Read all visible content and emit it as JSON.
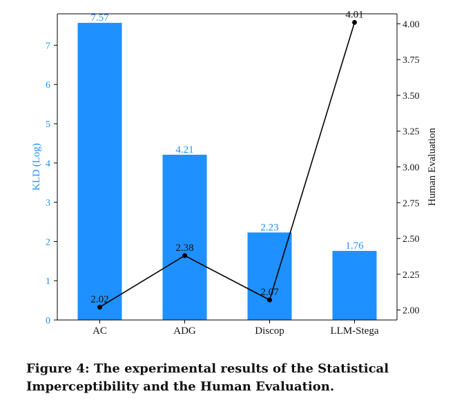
{
  "chart_data": {
    "type": "bar+line",
    "categories": [
      "AC",
      "ADG",
      "Discop",
      "LLM-Stega"
    ],
    "series": [
      {
        "name": "KLD (Log)",
        "type": "bar",
        "axis": "left",
        "values": [
          7.57,
          4.21,
          2.23,
          1.76
        ],
        "labels": [
          "7.57",
          "4.21",
          "2.23",
          "1.76"
        ],
        "color": "#1e90ff"
      },
      {
        "name": "Human Evaluation",
        "type": "line",
        "axis": "right",
        "values": [
          2.02,
          2.38,
          2.07,
          4.01
        ],
        "labels": [
          "2.02",
          "2.38",
          "2.07",
          "4.01"
        ],
        "color": "#000000"
      }
    ],
    "ylabel_left": "KLD (Log)",
    "ylabel_right": "Human Evaluation",
    "ylim_left": [
      0,
      7.8
    ],
    "ylim_right": [
      1.93,
      4.07
    ],
    "yticks_left": [
      0,
      1,
      2,
      3,
      4,
      5,
      6,
      7
    ],
    "yticks_right": [
      "2.00",
      "2.25",
      "2.50",
      "2.75",
      "3.00",
      "3.25",
      "3.50",
      "3.75",
      "4.00"
    ],
    "left_axis_color": "#1e90ff",
    "grid": false,
    "legend": "none"
  },
  "caption": "Figure 4: The experimental results of the Statistical Imperceptibility and the Human Evaluation."
}
